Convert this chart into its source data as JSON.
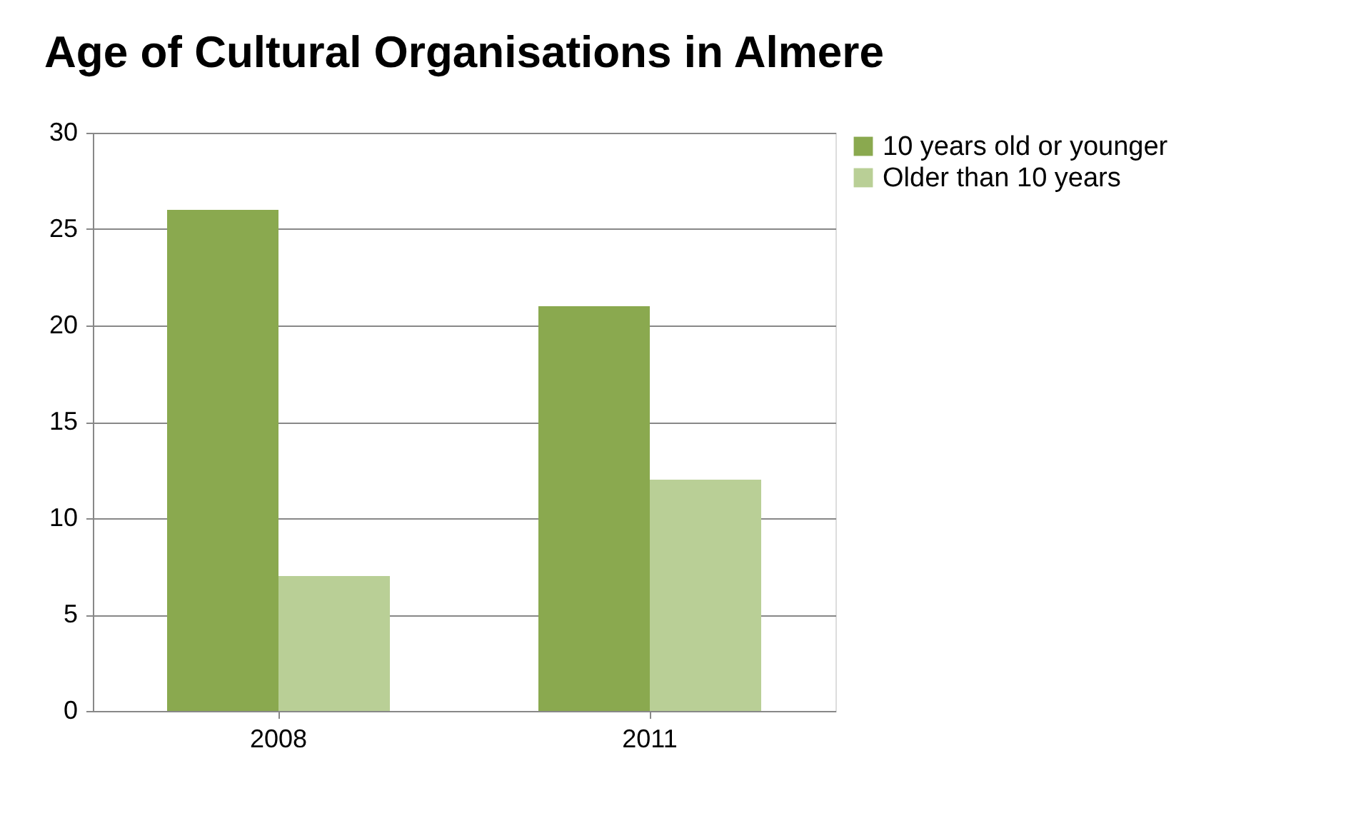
{
  "chart_data": {
    "type": "bar",
    "title": "Age of Cultural Organisations in Almere",
    "categories": [
      "2008",
      "2011"
    ],
    "series": [
      {
        "name": "10 years old or younger",
        "color": "#8aa94f",
        "values": [
          26,
          21
        ]
      },
      {
        "name": "Older than 10 years",
        "color": "#b9cf96",
        "values": [
          7,
          12
        ]
      }
    ],
    "ylim": [
      0,
      30
    ],
    "yticks": [
      0,
      5,
      10,
      15,
      20,
      25,
      30
    ],
    "grid": "y",
    "legend": "right"
  }
}
